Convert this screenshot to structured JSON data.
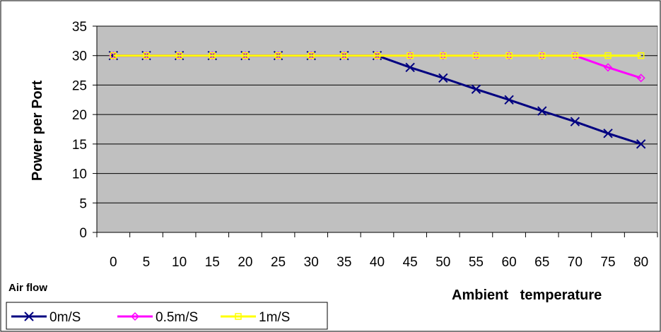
{
  "chart_data": {
    "type": "line",
    "title": "",
    "xlabel": "Ambient   temperature",
    "ylabel": "Power per Port",
    "categories": [
      "0",
      "5",
      "10",
      "15",
      "20",
      "25",
      "30",
      "35",
      "40",
      "45",
      "50",
      "55",
      "60",
      "65",
      "70",
      "75",
      "80"
    ],
    "ylim": [
      0,
      35
    ],
    "yticks": [
      "0",
      "5",
      "10",
      "15",
      "20",
      "25",
      "30",
      "35"
    ],
    "grid": true,
    "legend_title": "Air flow",
    "legend_position": "bottom-left",
    "plot_background": "#c0c0c0",
    "series": [
      {
        "name": "0m/S",
        "color": "#000080",
        "marker": "x",
        "values": [
          30,
          30,
          30,
          30,
          30,
          30,
          30,
          30,
          30,
          28,
          26.2,
          24.3,
          22.5,
          20.6,
          18.8,
          16.8,
          15
        ]
      },
      {
        "name": "0.5m/S",
        "color": "#ff00ff",
        "marker": "diamond",
        "values": [
          30,
          30,
          30,
          30,
          30,
          30,
          30,
          30,
          30,
          30,
          30,
          30,
          30,
          30,
          30,
          28,
          26.2
        ]
      },
      {
        "name": "1m/S",
        "color": "#ffff00",
        "marker": "square",
        "values": [
          30,
          30,
          30,
          30,
          30,
          30,
          30,
          30,
          30,
          30,
          30,
          30,
          30,
          30,
          30,
          30,
          30
        ]
      }
    ]
  }
}
